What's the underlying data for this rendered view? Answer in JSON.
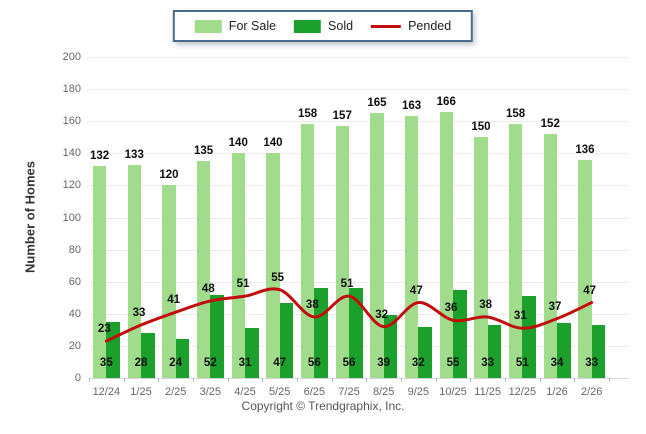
{
  "legend": {
    "items": [
      {
        "label": "For Sale",
        "color": "#a0dc8c",
        "type": "swatch"
      },
      {
        "label": "Sold",
        "color": "#1ca02c",
        "type": "swatch"
      },
      {
        "label": "Pended",
        "color": "#c30d0d",
        "type": "line"
      }
    ]
  },
  "footer": {
    "copyright": "Copyright © Trendgraphix, Inc."
  },
  "chart_data": {
    "type": "bar",
    "categories": [
      "12/24",
      "1/25",
      "2/25",
      "3/25",
      "4/25",
      "5/25",
      "6/25",
      "7/25",
      "8/25",
      "9/25",
      "10/25",
      "11/25",
      "12/25",
      "1/26",
      "2/26"
    ],
    "series": [
      {
        "name": "For Sale",
        "type": "bar",
        "color": "#a0dc8c",
        "values": [
          132,
          133,
          120,
          135,
          140,
          140,
          158,
          157,
          165,
          163,
          166,
          150,
          158,
          152,
          136
        ]
      },
      {
        "name": "Sold",
        "type": "bar",
        "color": "#1ca02c",
        "values": [
          35,
          28,
          24,
          52,
          31,
          47,
          56,
          56,
          39,
          32,
          55,
          33,
          51,
          34,
          33
        ]
      },
      {
        "name": "Pended",
        "type": "line",
        "color": "#c30d0d",
        "values": [
          23,
          33,
          41,
          48,
          51,
          55,
          38,
          51,
          32,
          47,
          36,
          38,
          31,
          37,
          47
        ]
      }
    ],
    "title": "",
    "xlabel": "",
    "ylabel": "Number of Homes",
    "ylim": [
      0,
      200
    ],
    "ytick_step": 20,
    "grid": true,
    "legend_position": "top-center"
  }
}
